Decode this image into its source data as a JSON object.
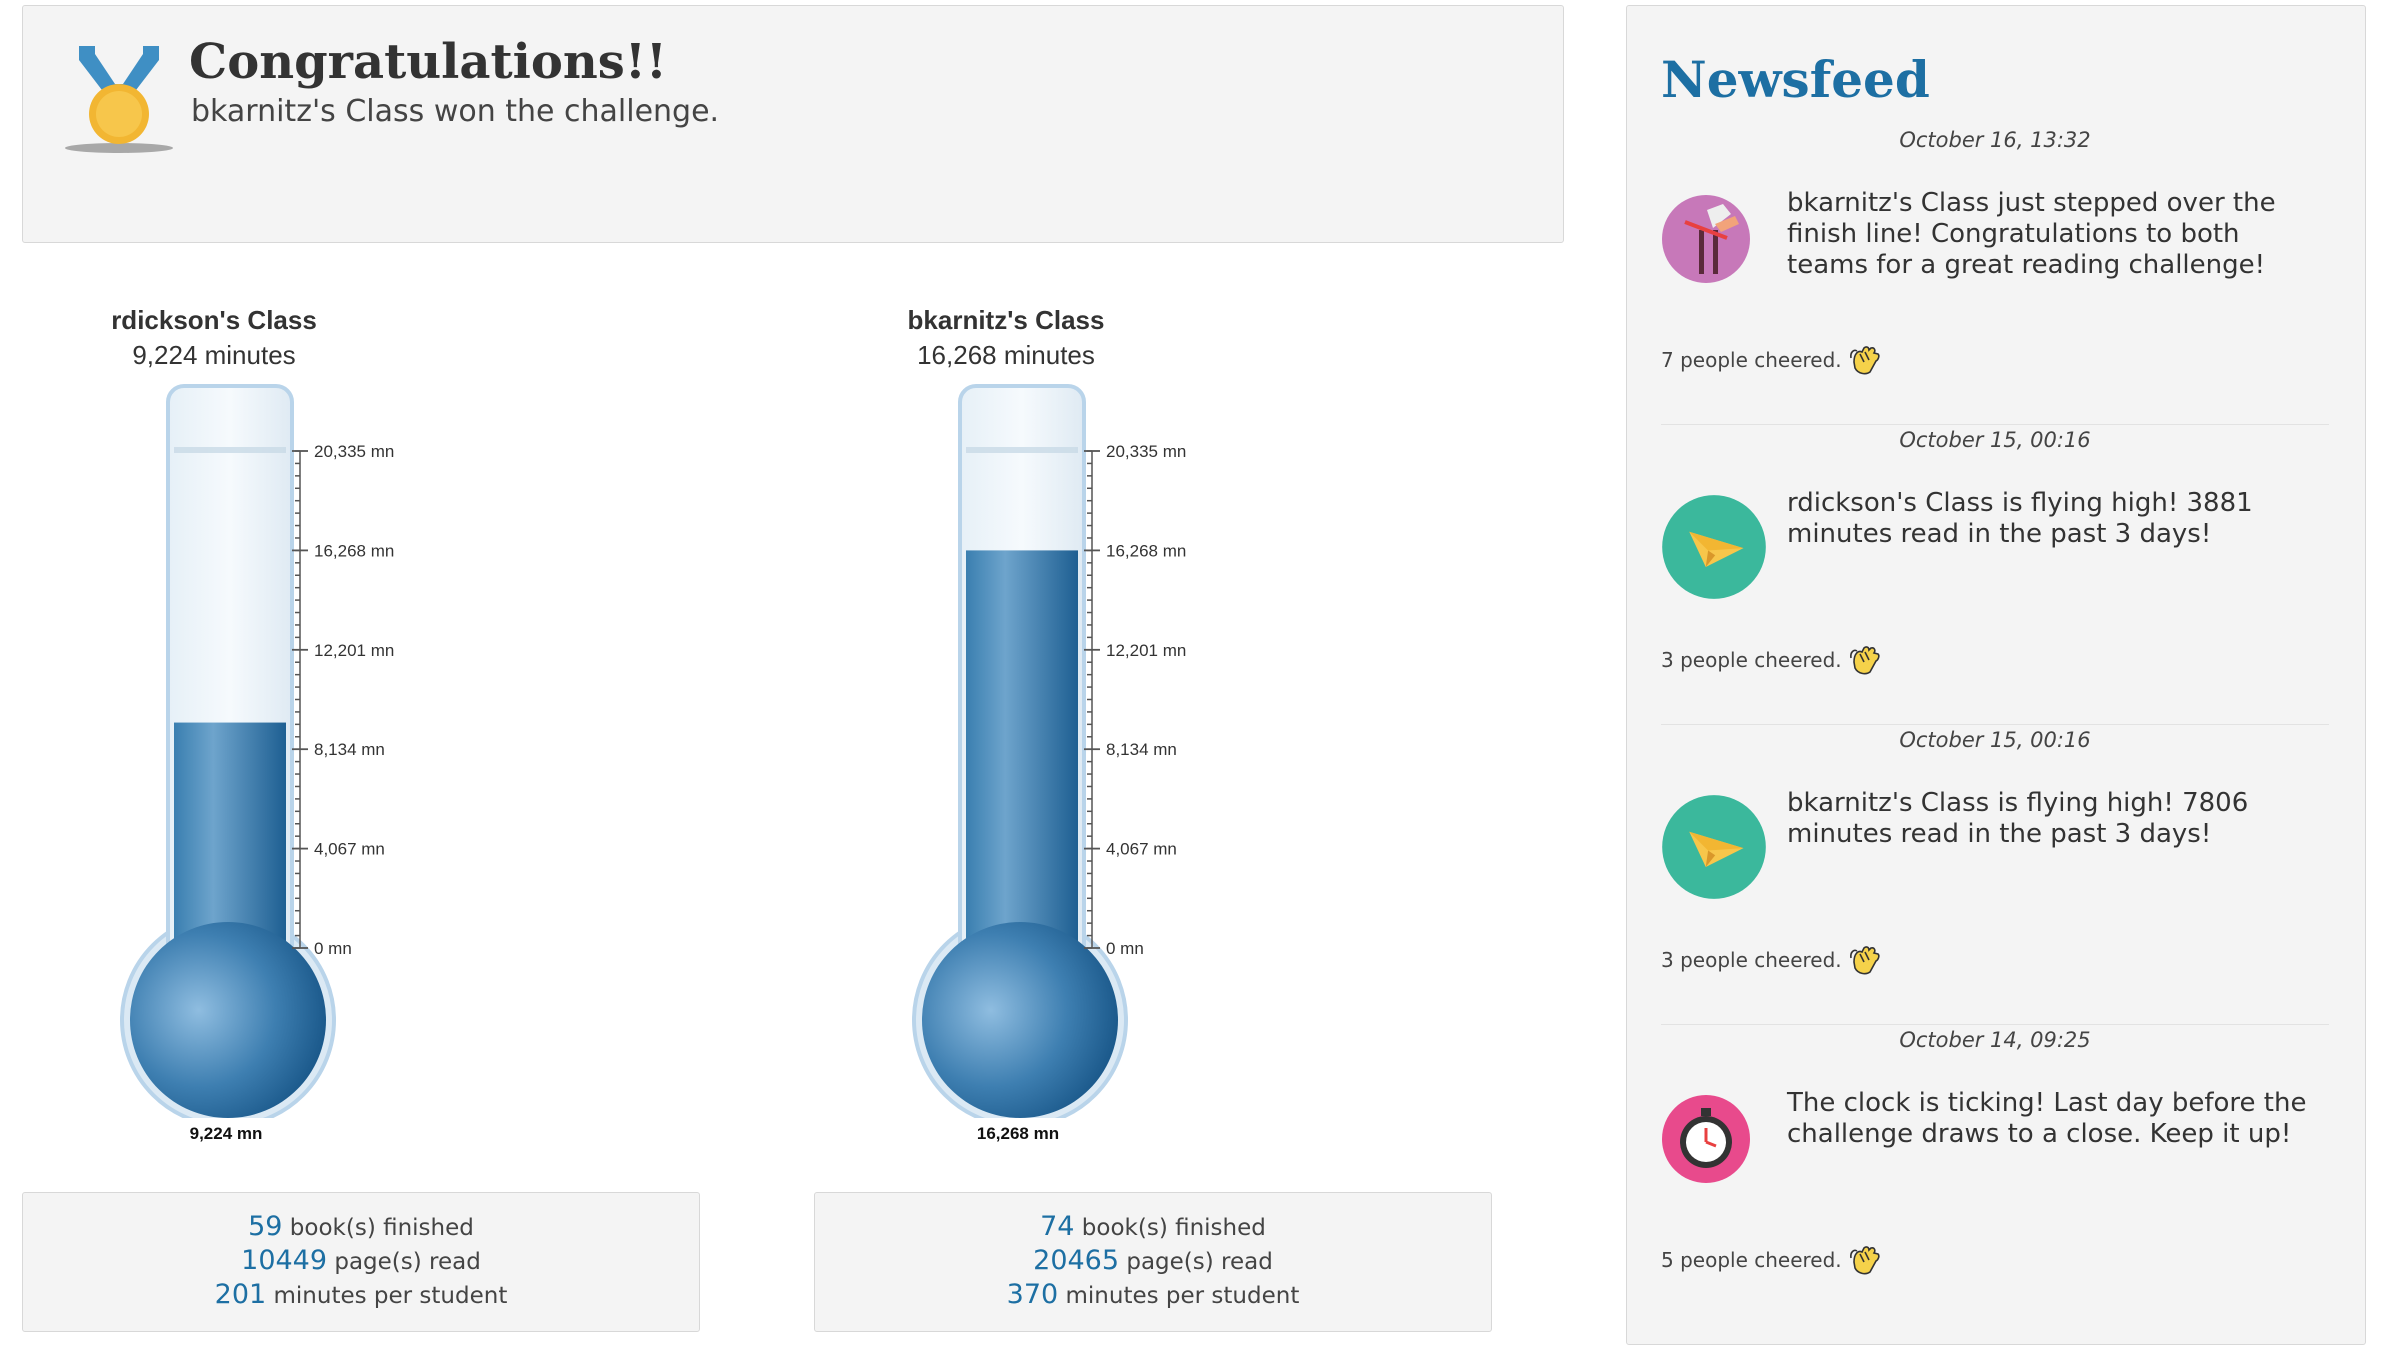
{
  "congrats": {
    "title": "Congratulations!!",
    "subtitle": "bkarnitz's Class won the challenge."
  },
  "classes": [
    {
      "name": "rdickson's Class",
      "minutes_label": "9,224 minutes",
      "bulb_label": "9,224 mn",
      "minutes": 9224,
      "stats": {
        "books": "59",
        "books_label": "book(s) finished",
        "pages": "10449",
        "pages_label": "page(s) read",
        "mps": "201",
        "mps_label": "minutes per student"
      }
    },
    {
      "name": "bkarnitz's Class",
      "minutes_label": "16,268 minutes",
      "bulb_label": "16,268 mn",
      "minutes": 16268,
      "stats": {
        "books": "74",
        "books_label": "book(s) finished",
        "pages": "20465",
        "pages_label": "page(s) read",
        "mps": "370",
        "mps_label": "minutes per student"
      }
    }
  ],
  "scale": {
    "max": 20335,
    "ticks": [
      {
        "value": 0,
        "label": "0 mn"
      },
      {
        "value": 4067,
        "label": "4,067 mn"
      },
      {
        "value": 8134,
        "label": "8,134 mn"
      },
      {
        "value": 12201,
        "label": "12,201 mn"
      },
      {
        "value": 16268,
        "label": "16,268 mn"
      },
      {
        "value": 20335,
        "label": "20,335 mn"
      }
    ]
  },
  "newsfeed": {
    "title": "Newsfeed",
    "items": [
      {
        "date": "October 16, 13:32",
        "icon": "finish-line-icon",
        "text": "bkarnitz's Class just stepped over the finish line! Congratulations to both teams for a great reading challenge!",
        "cheer": "7 people cheered."
      },
      {
        "date": "October 15, 00:16",
        "icon": "paper-plane-icon",
        "text": "rdickson's Class is flying high! 3881 minutes read in the past 3 days!",
        "cheer": "3 people cheered."
      },
      {
        "date": "October 15, 00:16",
        "icon": "paper-plane-icon",
        "text": "bkarnitz's Class is flying high! 7806 minutes read in the past 3 days!",
        "cheer": "3 people cheered."
      },
      {
        "date": "October 14, 09:25",
        "icon": "stopwatch-icon",
        "text": "The clock is ticking! Last day before the challenge draws to a close. Keep it up!",
        "cheer": "5 people cheered."
      }
    ]
  },
  "colors": {
    "accent": "#1d6fa3",
    "fill": "#2a6fa3",
    "paper_plane_bg": "#3bb89c",
    "finish_bg": "#c778b9",
    "stopwatch_bg": "#e84a8c"
  }
}
